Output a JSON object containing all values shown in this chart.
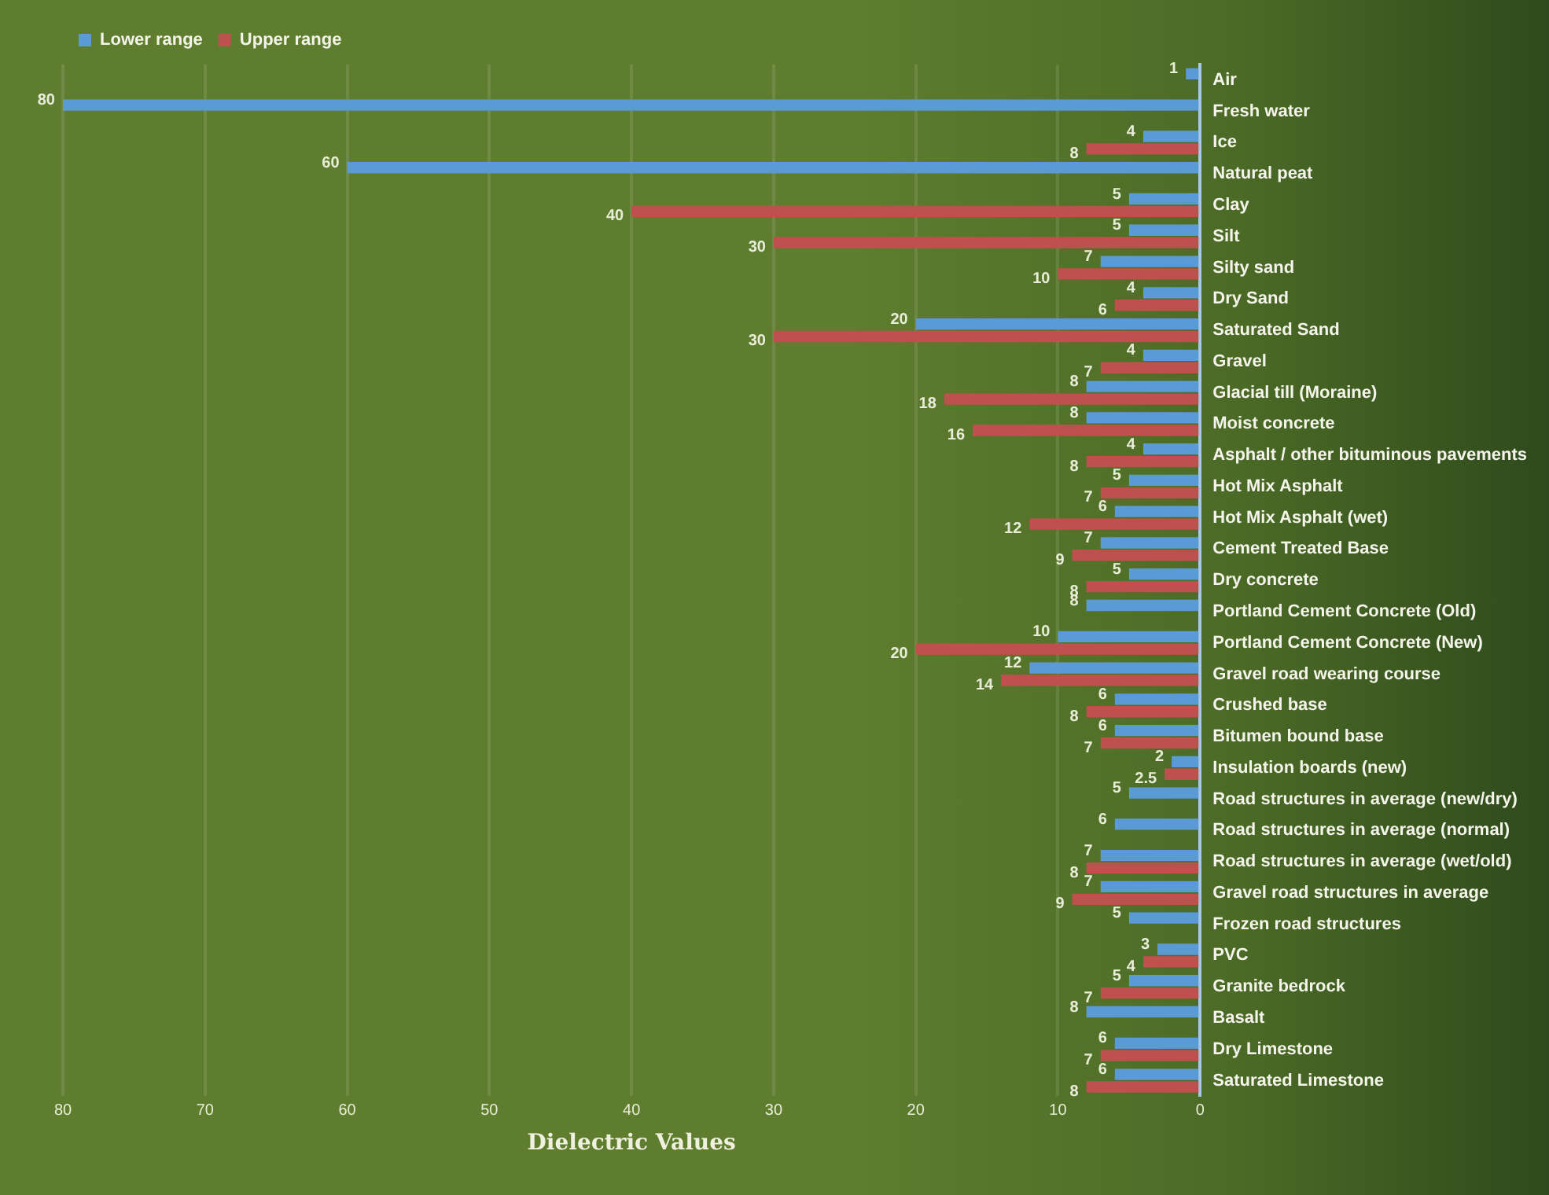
{
  "chart_data": {
    "type": "bar",
    "orientation": "horizontal",
    "xlabel": "Dielectric Values",
    "categories": [
      "Air",
      "Fresh water",
      "Ice",
      "Natural peat",
      "Clay",
      "Silt",
      "Silty sand",
      "Dry Sand",
      "Saturated Sand",
      "Gravel",
      "Glacial till (Moraine)",
      "Moist concrete",
      "Asphalt / other bituminous pavements",
      "Hot Mix Asphalt",
      "Hot Mix Asphalt (wet)",
      "Cement Treated Base",
      "Dry concrete",
      "Portland Cement Concrete (Old)",
      "Portland Cement Concrete (New)",
      "Gravel road wearing course",
      "Crushed base",
      "Bitumen bound base",
      "Insulation boards (new)",
      "Road structures in average (new/dry)",
      "Road structures in average (normal)",
      "Road structures in average (wet/old)",
      "Gravel road structures in average",
      "Frozen road structures",
      "PVC",
      "Granite bedrock",
      "Basalt",
      "Dry Limestone",
      "Saturated Limestone"
    ],
    "series": [
      {
        "name": "Lower range",
        "color": "#5b9bd5",
        "values": [
          1,
          80,
          4,
          60,
          5,
          5,
          7,
          4,
          20,
          4,
          8,
          8,
          4,
          5,
          6,
          7,
          5,
          8,
          10,
          12,
          6,
          6,
          2,
          5,
          6,
          7,
          7,
          5,
          3,
          5,
          8,
          6,
          6
        ]
      },
      {
        "name": "Upper range",
        "color": "#c0504d",
        "values": [
          null,
          null,
          8,
          null,
          40,
          30,
          10,
          6,
          30,
          7,
          18,
          16,
          8,
          7,
          12,
          9,
          8,
          null,
          20,
          14,
          8,
          7,
          2.5,
          null,
          null,
          8,
          9,
          null,
          4,
          7,
          null,
          7,
          8
        ]
      }
    ],
    "xlim": [
      80,
      0
    ],
    "xticks": [
      80,
      70,
      60,
      50,
      40,
      30,
      20,
      10,
      0
    ],
    "grid": "x",
    "legend": "top left",
    "data_labels": true
  }
}
